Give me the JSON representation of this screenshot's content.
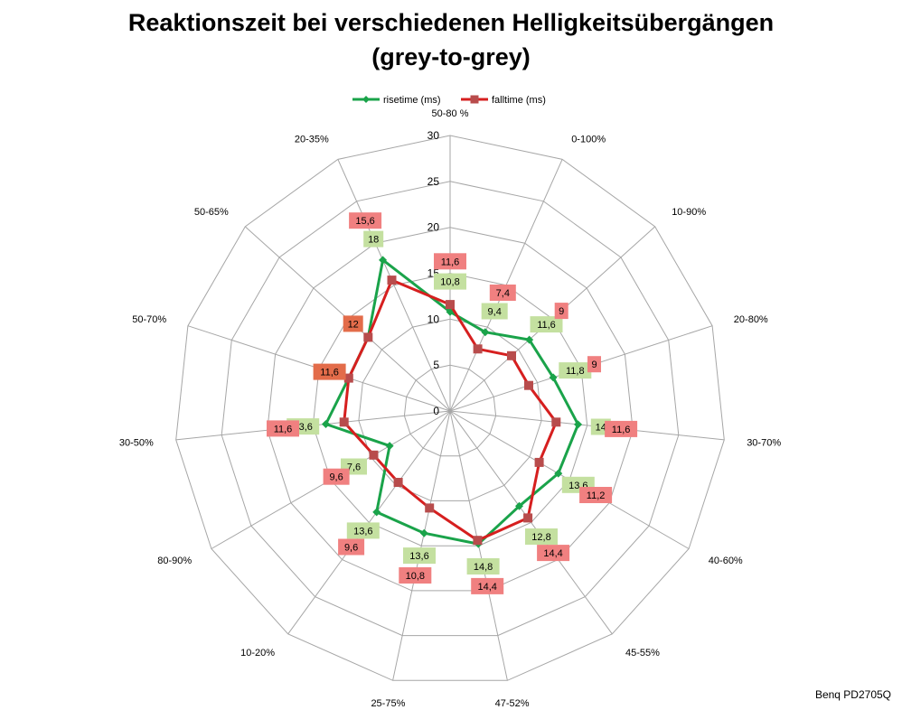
{
  "chart_data": {
    "type": "radar",
    "title": "Reaktionszeit bei verschiedenen Helligkeitsübergängen",
    "subtitle": "(grey-to-grey)",
    "categories": [
      "50-80 %",
      "0-100%",
      "10-90%",
      "20-80%",
      "30-70%",
      "40-60%",
      "45-55%",
      "47-52%",
      "25-75%",
      "10-20%",
      "80-90%",
      "30-50%",
      "50-70%",
      "50-65%",
      "20-35%"
    ],
    "series": [
      {
        "name": "risetime (ms)",
        "color": "#1aa34a",
        "label_bg": "#c4e0a0",
        "values": [
          10.8,
          9.4,
          11.6,
          11.8,
          14,
          13.6,
          12.8,
          14.8,
          13.6,
          13.6,
          7.6,
          13.6,
          11.6,
          12,
          18
        ],
        "labels": [
          "10,8",
          "9,4",
          "11,6",
          "11,8",
          "14",
          "13,6",
          "12,8",
          "14,8",
          "13,6",
          "13,6",
          "7,6",
          "13,6",
          "",
          "",
          "18"
        ]
      },
      {
        "name": "falltime (ms)",
        "color": "#d61f1f",
        "label_bg": "#f08080",
        "values": [
          11.6,
          7.4,
          9,
          9,
          11.6,
          11.2,
          14.4,
          14.4,
          10.8,
          9.6,
          9.6,
          11.6,
          11.6,
          12,
          15.6
        ],
        "labels": [
          "11,6",
          "7,4",
          "9",
          "9",
          "11,6",
          "11,2",
          "14,4",
          "14,4",
          "10,8",
          "9,6",
          "9,6",
          "11,6",
          "11,6",
          "12",
          "15,6"
        ]
      }
    ],
    "rlim": [
      0,
      30
    ],
    "ticks": [
      0,
      5,
      10,
      15,
      20,
      25,
      30
    ],
    "legend_position": "top"
  },
  "brand_label": "Benq PD2705Q",
  "colors": {
    "grid": "#a6a6a6",
    "overlap_label_bg": "#e36c4a"
  }
}
